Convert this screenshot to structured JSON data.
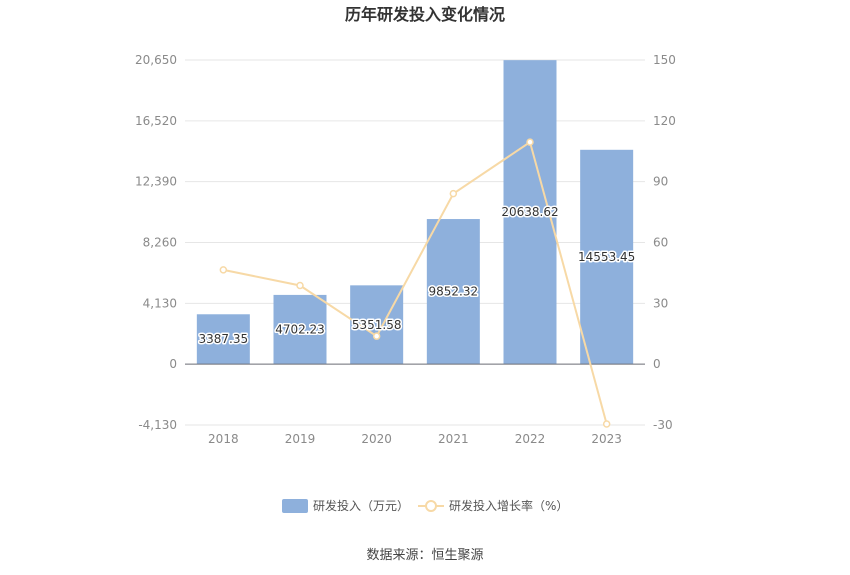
{
  "chart_data": {
    "type": "bar",
    "title": "历年研发投入变化情况",
    "categories": [
      "2018",
      "2019",
      "2020",
      "2021",
      "2022",
      "2023"
    ],
    "series": [
      {
        "name": "研发投入（万元）",
        "type": "bar",
        "axis": "left",
        "color": "#8eb0dc",
        "values": [
          3387.35,
          4702.23,
          5351.58,
          9852.32,
          20638.62,
          14553.45
        ],
        "labels": [
          "3387.35",
          "4702.23",
          "5351.58",
          "9852.32",
          "20638.62",
          "14553.45"
        ]
      },
      {
        "name": "研发投入增长率（%）",
        "type": "line",
        "axis": "right",
        "color": "#f7d9a6",
        "values": [
          46.5,
          38.8,
          13.8,
          84.1,
          109.5,
          -29.5
        ]
      }
    ],
    "y_left": {
      "ylim": [
        -4130,
        20650
      ],
      "ticks": [
        -4130,
        0,
        4130,
        8260,
        12390,
        16520,
        20650
      ],
      "tick_labels": [
        "-4,130",
        "0",
        "4,130",
        "8,260",
        "12,390",
        "16,520",
        "20,650"
      ]
    },
    "y_right": {
      "ylim": [
        -30,
        150
      ],
      "ticks": [
        -30,
        0,
        30,
        60,
        90,
        120,
        150
      ],
      "tick_labels": [
        "-30",
        "0",
        "30",
        "60",
        "90",
        "120",
        "150"
      ]
    },
    "grid": true,
    "legend_position": "bottom"
  },
  "footer": {
    "source": "数据来源：恒生聚源"
  }
}
